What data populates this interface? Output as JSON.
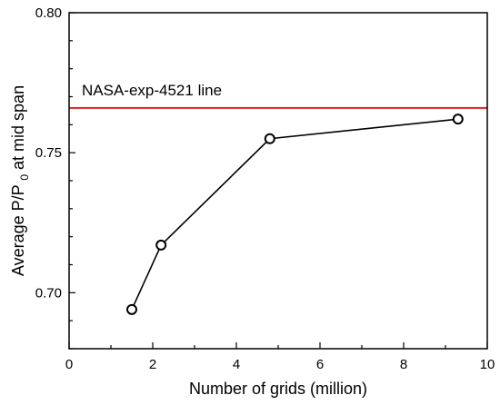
{
  "chart_data": {
    "type": "line",
    "title": "",
    "xlabel": "Number of grids (million)",
    "ylabel": {
      "main": "Average P/P",
      "subscript": "0",
      "suffix": " at mid span"
    },
    "xlim": [
      0,
      10
    ],
    "ylim": [
      0.68,
      0.8
    ],
    "x_ticks": [
      0,
      2,
      4,
      6,
      8,
      10
    ],
    "y_ticks": [
      0.7,
      0.75,
      0.8
    ],
    "x_tick_labels": [
      "0",
      "2",
      "4",
      "6",
      "8",
      "10"
    ],
    "y_tick_labels": [
      "0.70",
      "0.75",
      "0.80"
    ],
    "grid": false,
    "series": [
      {
        "x": [
          1.5,
          2.2,
          4.8,
          9.3
        ],
        "y": [
          0.694,
          0.717,
          0.755,
          0.762
        ],
        "color": "#000000",
        "marker": "open-circle"
      }
    ],
    "reference_line": {
      "label": "NASA-exp-4521 line",
      "y": 0.766,
      "color": "#e02020"
    }
  }
}
